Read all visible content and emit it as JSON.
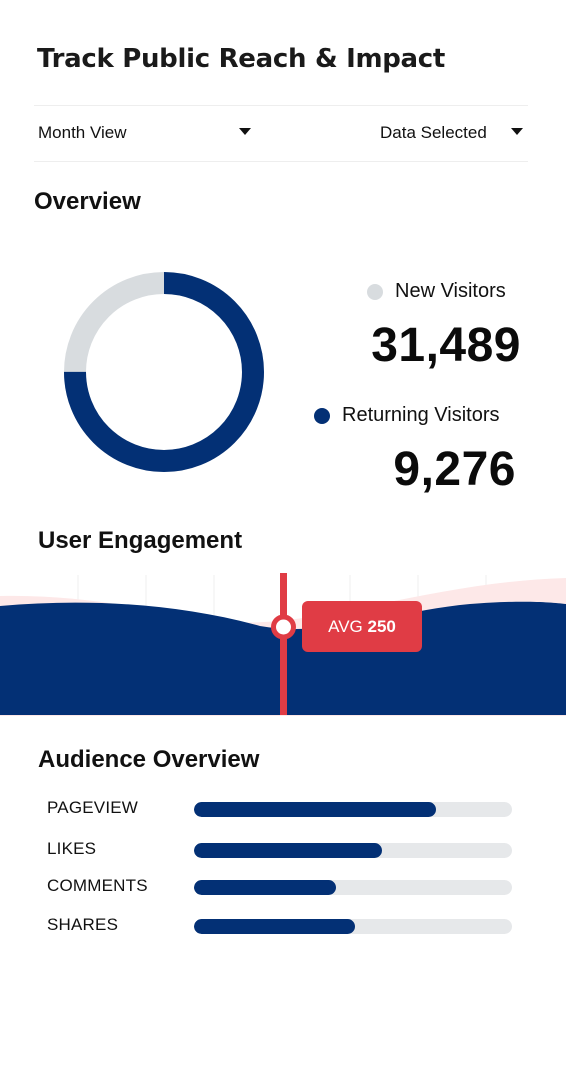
{
  "header": {
    "title": "Track Public Reach & Impact"
  },
  "filters": {
    "month_view": "Month View",
    "data_selected": "Data Selected"
  },
  "overview": {
    "title": "Overview",
    "new_visitors": {
      "label": "New Visitors",
      "value": "31,489",
      "color": "#d8dcdf"
    },
    "returning_visitors": {
      "label": "Returning Visitors",
      "value": "9,276",
      "color": "#033075"
    },
    "donut_returning_fraction": 0.75
  },
  "engagement": {
    "title": "User Engagement",
    "avg_label": "AVG",
    "avg_value": "250",
    "marker_color": "#e03c45",
    "primary_color": "#033075",
    "secondary_color": "#fde8e8"
  },
  "audience": {
    "title": "Audience Overview",
    "bars": [
      {
        "label": "PAGEVIEW",
        "fraction": 0.76
      },
      {
        "label": "LIKES",
        "fraction": 0.59
      },
      {
        "label": "COMMENTS",
        "fraction": 0.445
      },
      {
        "label": "SHARES",
        "fraction": 0.505
      }
    ]
  }
}
